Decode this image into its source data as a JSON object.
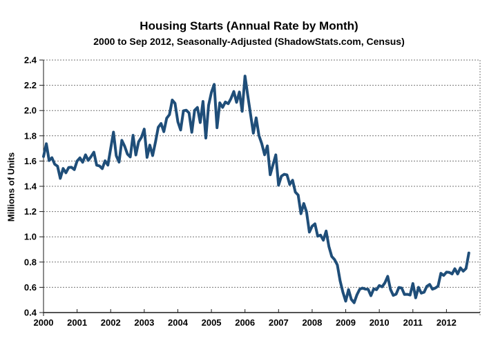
{
  "chart_data": {
    "type": "line",
    "title": "Housing Starts (Annual Rate by Month)",
    "subtitle": "2000 to Sep 2012, Seasonally-Adjusted (ShadowStats.com, Census)",
    "ylabel": "Millions of Units",
    "xlabel": "",
    "ylim": [
      0.4,
      2.4
    ],
    "y_tick_labels": [
      "0.4",
      "0.6",
      "0.8",
      "1.0",
      "1.2",
      "1.4",
      "1.6",
      "1.8",
      "2.0",
      "2.2",
      "2.4"
    ],
    "x_axis_years": [
      "2000",
      "2001",
      "2002",
      "2003",
      "2004",
      "2005",
      "2006",
      "2007",
      "2008",
      "2009",
      "2010",
      "2011",
      "2012"
    ],
    "grid": true,
    "grid_color": "#737373",
    "line_color": "#1F4E79",
    "legend": "none",
    "series": [
      {
        "name": "Housing Starts",
        "start": "2000-01",
        "end": "2012-09",
        "frequency": "monthly",
        "values": [
          1.636,
          1.737,
          1.604,
          1.626,
          1.575,
          1.559,
          1.463,
          1.541,
          1.507,
          1.549,
          1.551,
          1.532,
          1.6,
          1.625,
          1.59,
          1.649,
          1.605,
          1.636,
          1.67,
          1.567,
          1.562,
          1.54,
          1.602,
          1.568,
          1.698,
          1.829,
          1.642,
          1.592,
          1.764,
          1.717,
          1.655,
          1.633,
          1.804,
          1.648,
          1.753,
          1.788,
          1.853,
          1.629,
          1.726,
          1.643,
          1.751,
          1.867,
          1.897,
          1.833,
          1.939,
          1.967,
          2.083,
          2.057,
          1.911,
          1.846,
          1.998,
          2.003,
          1.981,
          1.828,
          2.002,
          2.024,
          1.905,
          2.072,
          1.782,
          2.042,
          2.144,
          2.207,
          1.864,
          2.061,
          2.025,
          2.068,
          2.054,
          2.095,
          2.151,
          2.065,
          2.147,
          1.994,
          2.273,
          2.119,
          1.969,
          1.821,
          1.942,
          1.802,
          1.737,
          1.65,
          1.72,
          1.491,
          1.57,
          1.649,
          1.409,
          1.48,
          1.495,
          1.49,
          1.415,
          1.448,
          1.354,
          1.33,
          1.183,
          1.264,
          1.197,
          1.037,
          1.084,
          1.103,
          1.005,
          1.013,
          0.973,
          1.046,
          0.923,
          0.844,
          0.82,
          0.777,
          0.652,
          0.56,
          0.49,
          0.582,
          0.505,
          0.478,
          0.54,
          0.585,
          0.594,
          0.586,
          0.585,
          0.534,
          0.588,
          0.581,
          0.614,
          0.604,
          0.636,
          0.687,
          0.583,
          0.536,
          0.546,
          0.599,
          0.594,
          0.543,
          0.545,
          0.539,
          0.63,
          0.517,
          0.6,
          0.554,
          0.561,
          0.608,
          0.623,
          0.585,
          0.594,
          0.61,
          0.711,
          0.694,
          0.72,
          0.718,
          0.706,
          0.747,
          0.706,
          0.754,
          0.728,
          0.749,
          0.872
        ]
      }
    ]
  }
}
